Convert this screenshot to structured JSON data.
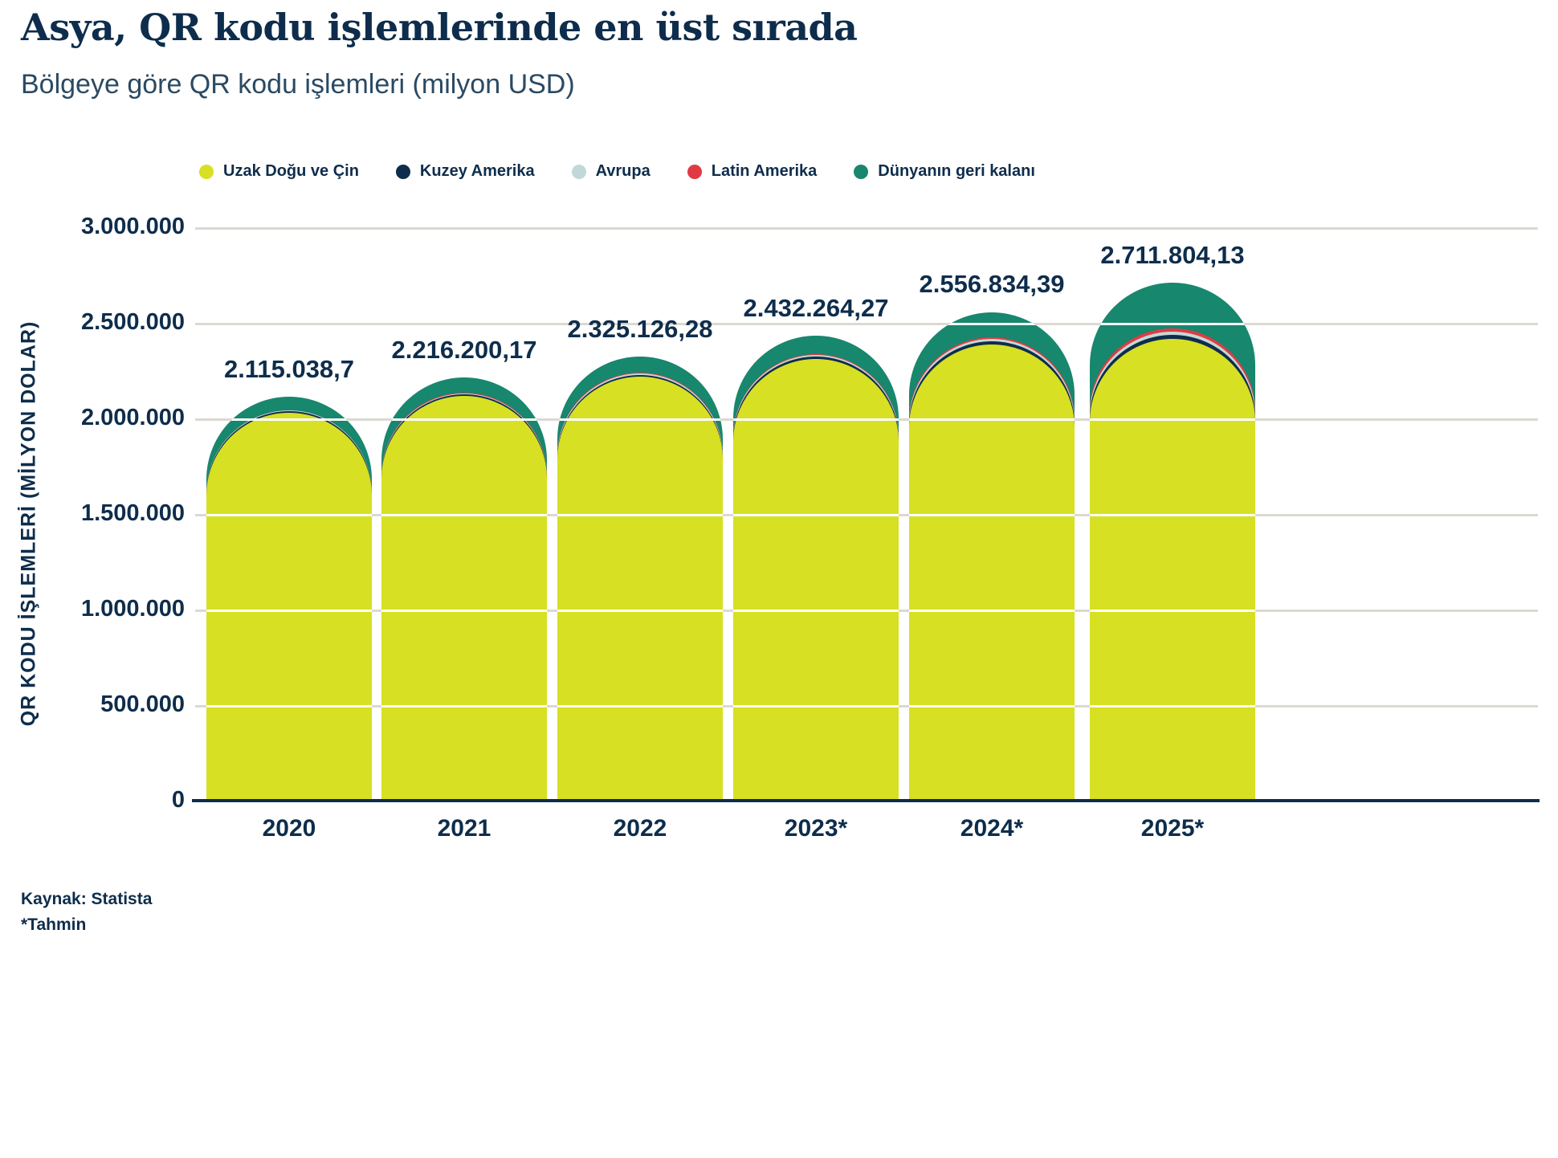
{
  "header": {
    "title": "Asya, QR kodu işlemlerinde en üst sırada",
    "subtitle": "Bölgeye göre QR kodu işlemleri (milyon USD)"
  },
  "chart_data": {
    "type": "bar",
    "stacked": true,
    "grid": true,
    "legend_position": "top",
    "title": "Bölgeye göre QR kodu işlemleri (milyon USD)",
    "ylabel": "QR KODU İŞLEMLERİ (MİLYON DOLAR)",
    "ylim": [
      0,
      3000000
    ],
    "categories": [
      "2020",
      "2021",
      "2022",
      "2023*",
      "2024*",
      "2025*"
    ],
    "series": [
      {
        "name": "Uzak Doğu ve Çin",
        "color": "#d7e022",
        "values": [
          2030000,
          2118000,
          2220000,
          2312000,
          2388000,
          2418000
        ]
      },
      {
        "name": "Kuzey Amerika",
        "color": "#0e2d4c",
        "values": [
          6000,
          7000,
          8500,
          10500,
          14000,
          19000
        ]
      },
      {
        "name": "Avrupa",
        "color": "#c2d8d8",
        "values": [
          4500,
          5200,
          6200,
          8000,
          12500,
          17500
        ]
      },
      {
        "name": "Latin Amerika",
        "color": "#e23a44",
        "values": [
          3500,
          4000,
          5000,
          6500,
          10000,
          16500
        ]
      },
      {
        "name": "Dünyanın geri kalanı",
        "color": "#17876d",
        "values": [
          71038.7,
          82000.17,
          85426.28,
          95264.27,
          132334.39,
          240804.13
        ]
      }
    ],
    "totals": [
      2115038.7,
      2216200.17,
      2325126.28,
      2432264.27,
      2556834.39,
      2711804.13
    ],
    "data_labels": [
      "2.115.038,7",
      "2.216.200,17",
      "2.325.126,28",
      "2.432.264,27",
      "2.556.834,39",
      "2.711.804,13"
    ],
    "yticks": [
      {
        "value": 0,
        "label": "0"
      },
      {
        "value": 500000,
        "label": "500.000"
      },
      {
        "value": 1000000,
        "label": "1.000.000"
      },
      {
        "value": 1500000,
        "label": "1.500.000"
      },
      {
        "value": 2000000,
        "label": "2.000.000"
      },
      {
        "value": 2500000,
        "label": "2.500.000"
      },
      {
        "value": 3000000,
        "label": "3.000.000"
      }
    ]
  },
  "footer": {
    "source": "Kaynak: Statista",
    "note": "*Tahmin"
  }
}
